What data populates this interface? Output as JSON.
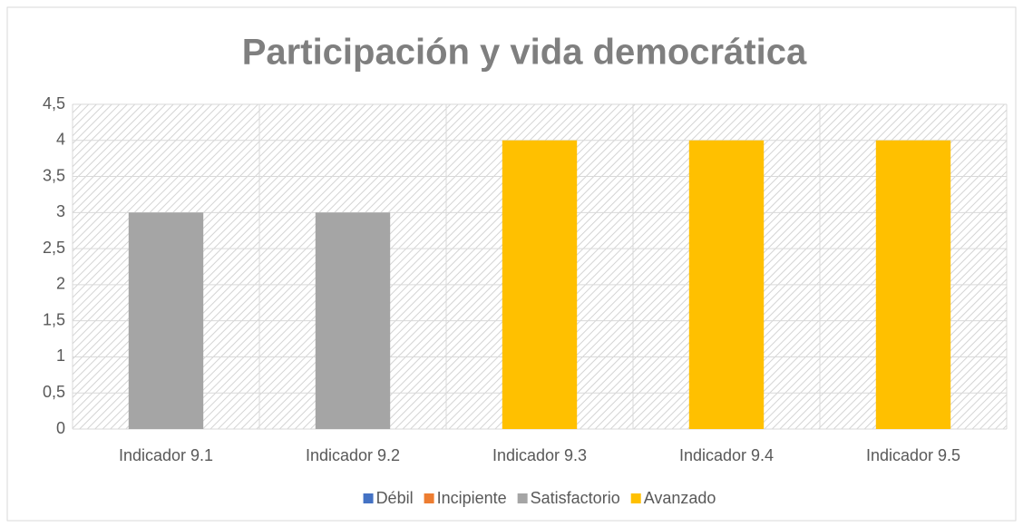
{
  "chart_data": {
    "type": "bar",
    "stacked": true,
    "title": "Participación y vida democrática",
    "categories": [
      "Indicador 9.1",
      "Indicador 9.2",
      "Indicador 9.3",
      "Indicador 9.4",
      "Indicador 9.5"
    ],
    "series": [
      {
        "name": "Débil",
        "color": "#4472c4",
        "values": [
          null,
          null,
          null,
          null,
          null
        ]
      },
      {
        "name": "Incipiente",
        "color": "#ed7d31",
        "values": [
          null,
          null,
          null,
          null,
          null
        ]
      },
      {
        "name": "Satisfactorio",
        "color": "#a5a5a5",
        "values": [
          3,
          3,
          null,
          null,
          null
        ]
      },
      {
        "name": "Avanzado",
        "color": "#ffc000",
        "values": [
          null,
          null,
          4,
          4,
          4
        ]
      }
    ],
    "ylim": [
      0,
      4.5
    ],
    "yticks": [
      0,
      {
        "value": 0.5,
        "label": "0,5"
      },
      1,
      {
        "value": 1.5,
        "label": "1,5"
      },
      2,
      {
        "value": 2.5,
        "label": "2,5"
      },
      3,
      {
        "value": 3.5,
        "label": "3,5"
      },
      4,
      {
        "value": 4.5,
        "label": "4,5"
      }
    ],
    "grid": true,
    "legend": "bottom"
  }
}
